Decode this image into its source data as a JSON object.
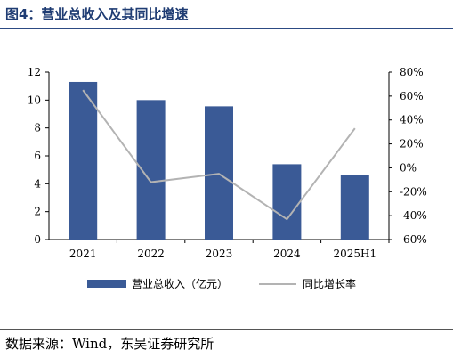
{
  "figure": {
    "title": "图4：营业总收入及其同比增速",
    "source": "数据来源：Wind，东吴证券研究所"
  },
  "chart_data": {
    "type": "bar",
    "categories": [
      "2021",
      "2022",
      "2023",
      "2024",
      "2025H1"
    ],
    "series": [
      {
        "name": "营业总收入（亿元）",
        "type": "bar",
        "axis": "left",
        "color": "#3a5a96",
        "values": [
          11.3,
          10.0,
          9.55,
          5.4,
          4.6
        ]
      },
      {
        "name": "同比增长率",
        "type": "line",
        "axis": "right",
        "color": "#b3b3b3",
        "values": [
          65,
          -12,
          -5,
          -43,
          33
        ]
      }
    ],
    "y_left": {
      "min": 0,
      "max": 12,
      "step": 2,
      "ticks": [
        "0",
        "2",
        "4",
        "6",
        "8",
        "10",
        "12"
      ]
    },
    "y_right": {
      "min": -60,
      "max": 80,
      "step": 20,
      "ticks": [
        "-60%",
        "-40%",
        "-20%",
        "0%",
        "20%",
        "40%",
        "60%",
        "80%"
      ]
    },
    "legend_position": "bottom",
    "grid": false
  }
}
